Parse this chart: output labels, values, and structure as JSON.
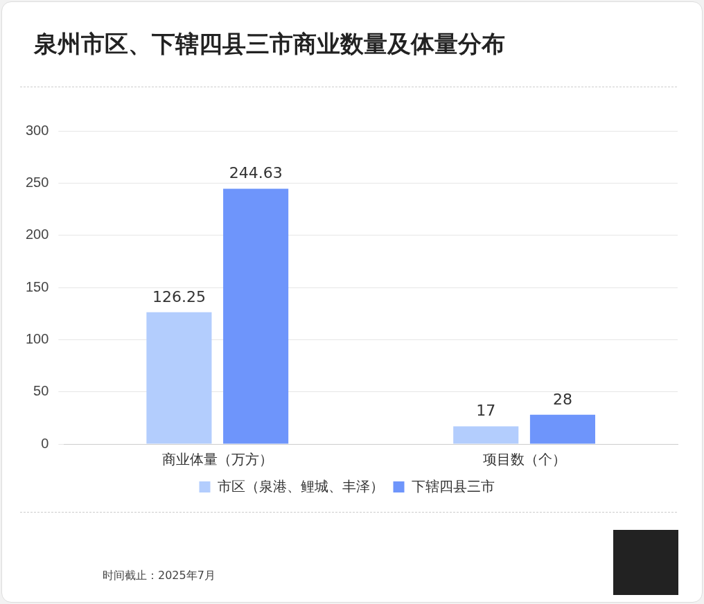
{
  "chart_data": {
    "type": "bar",
    "title": "泉州市区、下辖四县三市商业数量及体量分布",
    "categories": [
      "商业体量（万方）",
      "项目数（个）"
    ],
    "series": [
      {
        "name": "市区（泉港、鲤城、丰泽）",
        "color": "#b3cdfd",
        "values": [
          126.25,
          17
        ]
      },
      {
        "name": "下辖四县三市",
        "color": "#6e95fb",
        "values": [
          244.63,
          28
        ]
      }
    ],
    "ylim": [
      0,
      300
    ],
    "yticks": [
      0,
      50,
      100,
      150,
      200,
      250,
      300
    ],
    "grid": "y",
    "legend": "bottom",
    "data_labels": true,
    "annotations": [
      "时间截止：2025年7月"
    ]
  }
}
